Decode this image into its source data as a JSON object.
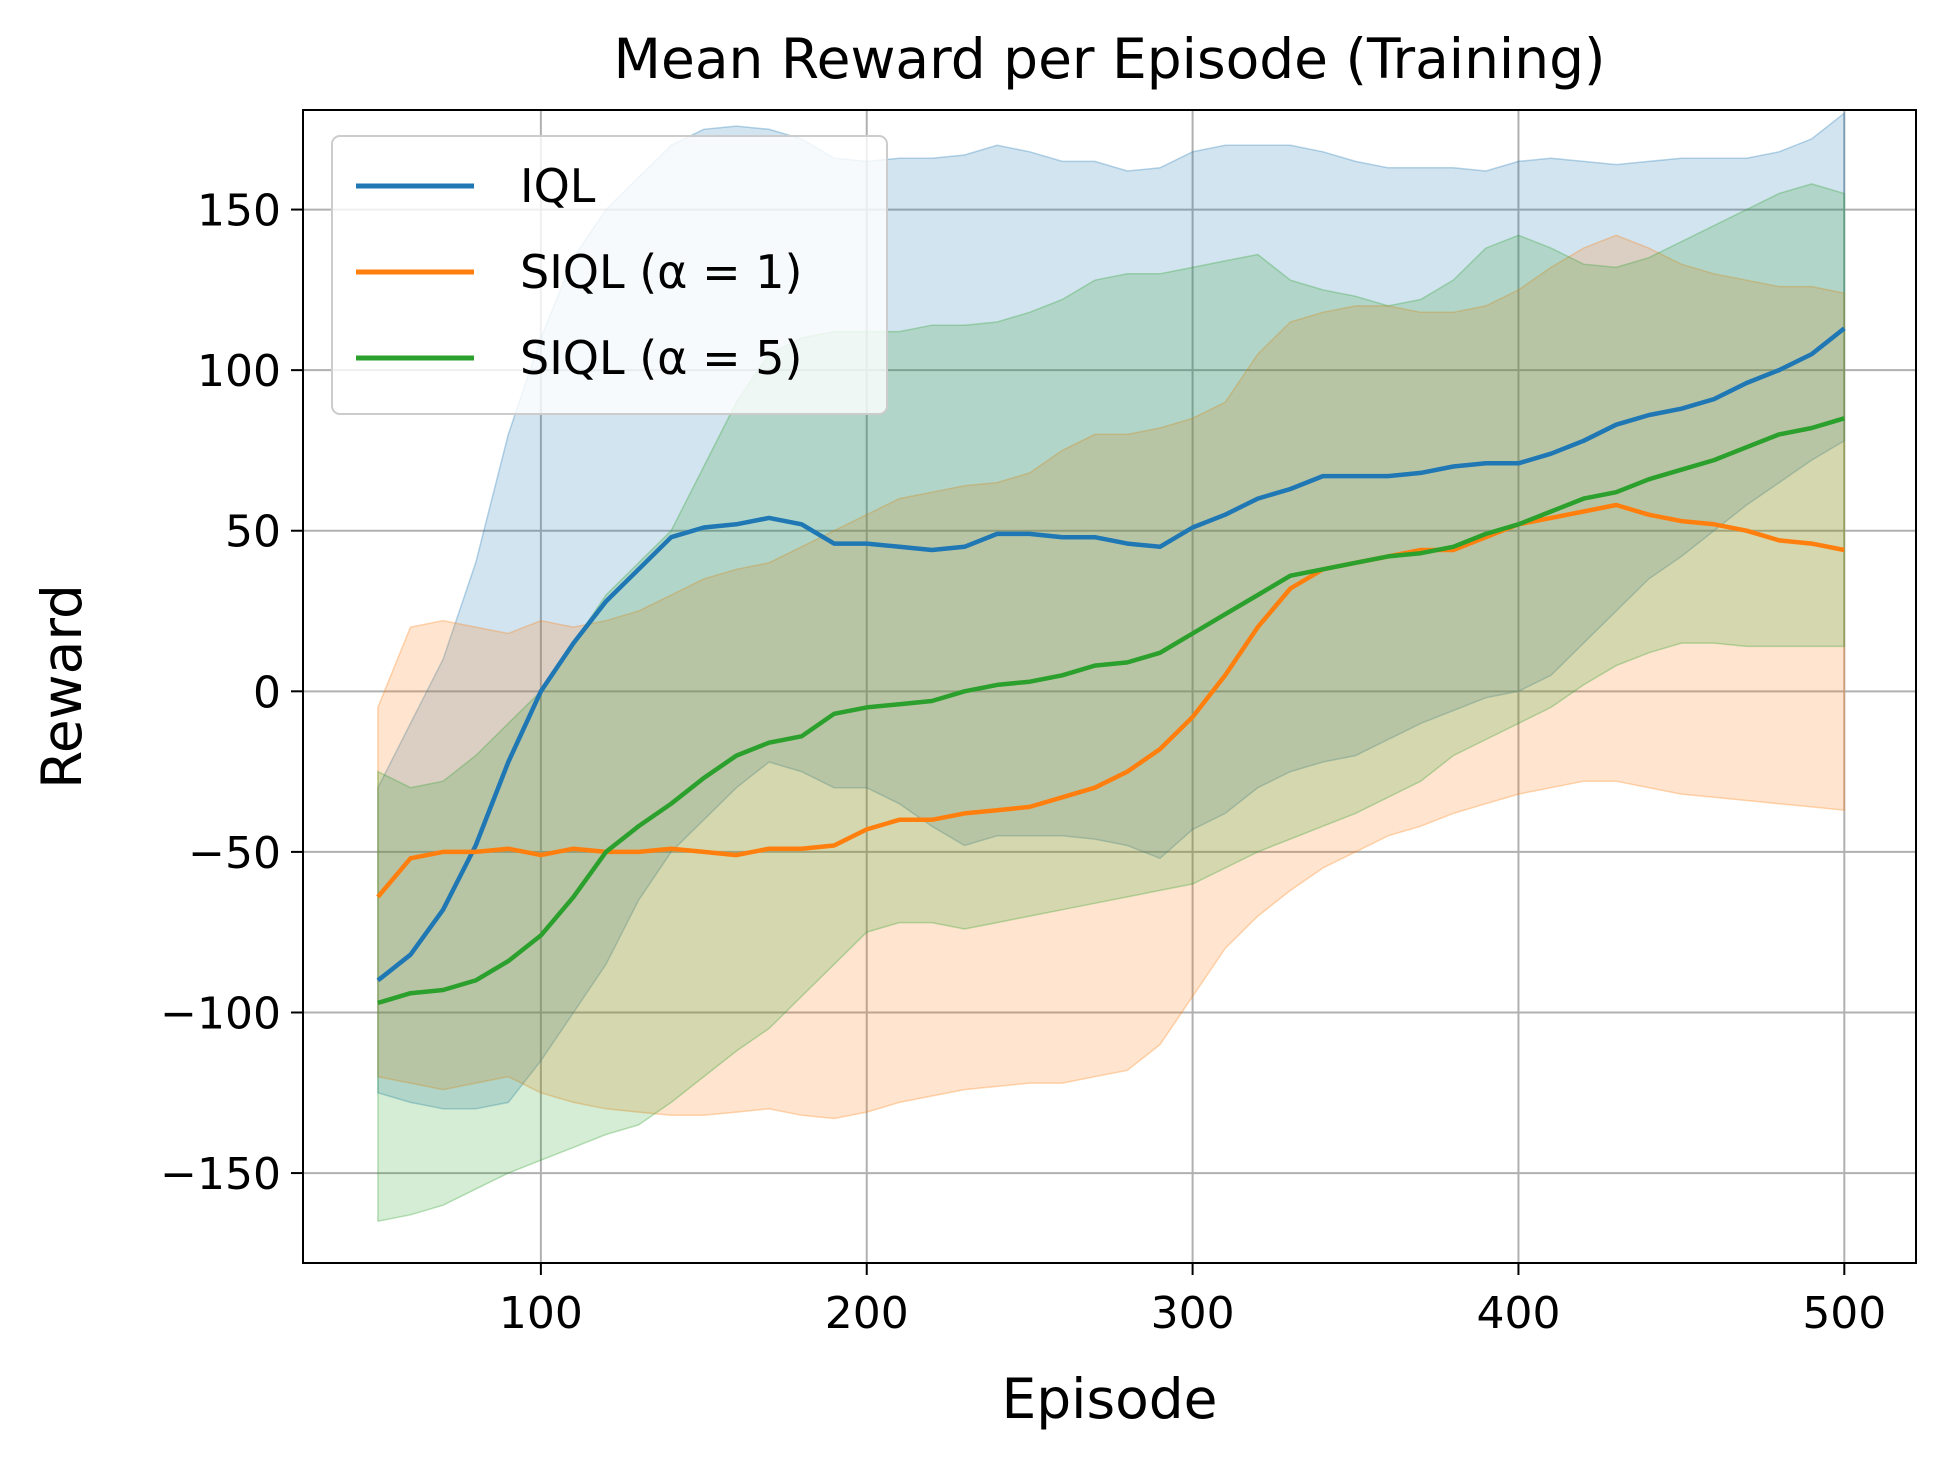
{
  "chart_data": {
    "type": "line",
    "title": "Mean Reward per Episode (Training)",
    "xlabel": "Episode",
    "ylabel": "Reward",
    "xlim": [
      27,
      522
    ],
    "ylim": [
      -178,
      181
    ],
    "xticks": [
      100,
      200,
      300,
      400,
      500
    ],
    "xtick_labels": [
      "100",
      "200",
      "300",
      "400",
      "500"
    ],
    "yticks": [
      -150,
      -100,
      -50,
      0,
      50,
      100,
      150
    ],
    "ytick_labels": [
      "−150",
      "−100",
      "−50",
      "0",
      "50",
      "100",
      "150"
    ],
    "grid": true,
    "legend_position": "upper-left",
    "series": [
      {
        "name": "IQL",
        "legend_label": "IQL",
        "color": "#1f77b4",
        "x": [
          50,
          60,
          70,
          80,
          90,
          100,
          110,
          120,
          130,
          140,
          150,
          160,
          170,
          180,
          190,
          200,
          210,
          220,
          230,
          240,
          250,
          260,
          270,
          280,
          290,
          300,
          310,
          320,
          330,
          340,
          350,
          360,
          370,
          380,
          390,
          400,
          410,
          420,
          430,
          440,
          450,
          460,
          470,
          480,
          490,
          500
        ],
        "mean": [
          -90,
          -82,
          -68,
          -48,
          -22,
          0,
          15,
          28,
          38,
          48,
          51,
          52,
          54,
          52,
          46,
          46,
          45,
          44,
          45,
          49,
          49,
          48,
          48,
          46,
          45,
          51,
          55,
          60,
          63,
          67,
          67,
          67,
          68,
          70,
          71,
          71,
          74,
          78,
          83,
          86,
          88,
          91,
          96,
          100,
          105,
          113
        ],
        "upper": [
          -30,
          -10,
          10,
          40,
          80,
          110,
          135,
          150,
          160,
          170,
          175,
          176,
          175,
          172,
          166,
          165,
          166,
          166,
          167,
          170,
          168,
          165,
          165,
          162,
          163,
          168,
          170,
          170,
          170,
          168,
          165,
          163,
          163,
          163,
          162,
          165,
          166,
          165,
          164,
          165,
          166,
          166,
          166,
          168,
          172,
          180
        ],
        "lower": [
          -125,
          -128,
          -130,
          -130,
          -128,
          -115,
          -100,
          -85,
          -65,
          -50,
          -40,
          -30,
          -22,
          -25,
          -30,
          -30,
          -35,
          -42,
          -48,
          -45,
          -45,
          -45,
          -46,
          -48,
          -52,
          -43,
          -38,
          -30,
          -25,
          -22,
          -20,
          -15,
          -10,
          -6,
          -2,
          0,
          5,
          15,
          25,
          35,
          42,
          50,
          58,
          65,
          72,
          78
        ]
      },
      {
        "name": "SIQL (α = 1)",
        "legend_label": "SIQL (α = 1)",
        "color": "#ff7f0e",
        "x": [
          50,
          60,
          70,
          80,
          90,
          100,
          110,
          120,
          130,
          140,
          150,
          160,
          170,
          180,
          190,
          200,
          210,
          220,
          230,
          240,
          250,
          260,
          270,
          280,
          290,
          300,
          310,
          320,
          330,
          340,
          350,
          360,
          370,
          380,
          390,
          400,
          410,
          420,
          430,
          440,
          450,
          460,
          470,
          480,
          490,
          500
        ],
        "mean": [
          -64,
          -52,
          -50,
          -50,
          -49,
          -51,
          -49,
          -50,
          -50,
          -49,
          -50,
          -51,
          -49,
          -49,
          -48,
          -43,
          -40,
          -40,
          -38,
          -37,
          -36,
          -33,
          -30,
          -25,
          -18,
          -8,
          5,
          20,
          32,
          38,
          40,
          42,
          44,
          44,
          48,
          52,
          54,
          56,
          58,
          55,
          53,
          52,
          50,
          47,
          46,
          44
        ],
        "upper": [
          -5,
          20,
          22,
          20,
          18,
          22,
          20,
          22,
          25,
          30,
          35,
          38,
          40,
          45,
          50,
          55,
          60,
          62,
          64,
          65,
          68,
          75,
          80,
          80,
          82,
          85,
          90,
          105,
          115,
          118,
          120,
          120,
          118,
          118,
          120,
          125,
          132,
          138,
          142,
          138,
          133,
          130,
          128,
          126,
          126,
          124
        ],
        "lower": [
          -120,
          -122,
          -124,
          -122,
          -120,
          -125,
          -128,
          -130,
          -131,
          -132,
          -132,
          -131,
          -130,
          -132,
          -133,
          -131,
          -128,
          -126,
          -124,
          -123,
          -122,
          -122,
          -120,
          -118,
          -110,
          -95,
          -80,
          -70,
          -62,
          -55,
          -50,
          -45,
          -42,
          -38,
          -35,
          -32,
          -30,
          -28,
          -28,
          -30,
          -32,
          -33,
          -34,
          -35,
          -36,
          -37
        ]
      },
      {
        "name": "SIQL (α = 5)",
        "legend_label": "SIQL (α = 5)",
        "color": "#2ca02c",
        "x": [
          50,
          60,
          70,
          80,
          90,
          100,
          110,
          120,
          130,
          140,
          150,
          160,
          170,
          180,
          190,
          200,
          210,
          220,
          230,
          240,
          250,
          260,
          270,
          280,
          290,
          300,
          310,
          320,
          330,
          340,
          350,
          360,
          370,
          380,
          390,
          400,
          410,
          420,
          430,
          440,
          450,
          460,
          470,
          480,
          490,
          500
        ],
        "mean": [
          -97,
          -94,
          -93,
          -90,
          -84,
          -76,
          -64,
          -50,
          -42,
          -35,
          -27,
          -20,
          -16,
          -14,
          -7,
          -5,
          -4,
          -3,
          0,
          2,
          3,
          5,
          8,
          9,
          12,
          18,
          24,
          30,
          36,
          38,
          40,
          42,
          43,
          45,
          49,
          52,
          56,
          60,
          62,
          66,
          69,
          72,
          76,
          80,
          82,
          85
        ],
        "upper": [
          -25,
          -30,
          -28,
          -20,
          -10,
          0,
          15,
          30,
          40,
          50,
          70,
          90,
          105,
          110,
          112,
          112,
          112,
          114,
          114,
          115,
          118,
          122,
          128,
          130,
          130,
          132,
          134,
          136,
          128,
          125,
          123,
          120,
          122,
          128,
          138,
          142,
          138,
          133,
          132,
          135,
          140,
          145,
          150,
          155,
          158,
          155
        ],
        "lower": [
          -165,
          -163,
          -160,
          -155,
          -150,
          -146,
          -142,
          -138,
          -135,
          -128,
          -120,
          -112,
          -105,
          -95,
          -85,
          -75,
          -72,
          -72,
          -74,
          -72,
          -70,
          -68,
          -66,
          -64,
          -62,
          -60,
          -55,
          -50,
          -46,
          -42,
          -38,
          -33,
          -28,
          -20,
          -15,
          -10,
          -5,
          2,
          8,
          12,
          15,
          15,
          14,
          14,
          14,
          14
        ]
      }
    ]
  }
}
